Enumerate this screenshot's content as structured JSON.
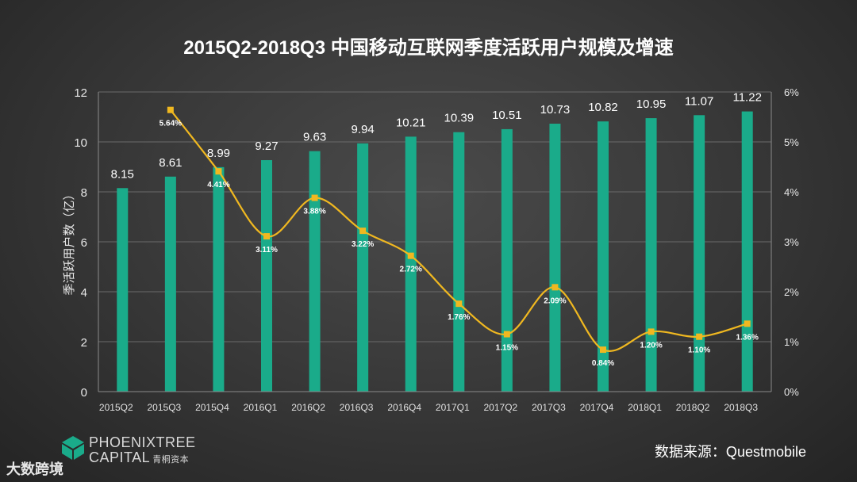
{
  "chart_data": {
    "type": "bar",
    "title": "2015Q2-2018Q3  中国移动互联网季度活跃用户规模及增速",
    "ylabel": "季活跃用户数（亿）",
    "ylim": [
      0,
      12
    ],
    "y2lim": [
      0,
      6
    ],
    "yticks": [
      "0",
      "2",
      "4",
      "6",
      "8",
      "10",
      "12"
    ],
    "y2ticks": [
      "0%",
      "1%",
      "2%",
      "3%",
      "4%",
      "5%",
      "6%"
    ],
    "categories": [
      "2015Q2",
      "2015Q3",
      "2015Q4",
      "2016Q1",
      "2016Q2",
      "2016Q3",
      "2016Q4",
      "2017Q1",
      "2017Q2",
      "2017Q3",
      "2017Q4",
      "2018Q1",
      "2018Q2",
      "2018Q3"
    ],
    "bar_values": [
      8.15,
      8.61,
      8.99,
      9.27,
      9.63,
      9.94,
      10.21,
      10.39,
      10.51,
      10.73,
      10.82,
      10.95,
      11.07,
      11.22
    ],
    "bar_labels": [
      "8.15",
      "8.61",
      "8.99",
      "9.27",
      "9.63",
      "9.94",
      "10.21",
      "10.39",
      "10.51",
      "10.73",
      "10.82",
      "10.95",
      "11.07",
      "11.22"
    ],
    "line_values": [
      null,
      5.64,
      4.41,
      3.11,
      3.88,
      3.22,
      2.72,
      1.76,
      1.15,
      2.09,
      0.84,
      1.2,
      1.1,
      1.36
    ],
    "line_labels": [
      "",
      "5.64%",
      "4.41%",
      "3.11%",
      "3.88%",
      "3.22%",
      "2.72%",
      "1.76%",
      "1.15%",
      "2.09%",
      "0.84%",
      "1.20%",
      "1.10%",
      "1.36%"
    ],
    "bar_color": "#1aab8a",
    "line_color": "#f0b820",
    "grid": true
  },
  "footer": {
    "source": "数据来源：Questmobile",
    "logo_line1": "PHOENIXTREE",
    "logo_line2": "CAPITAL",
    "logo_cn": "青桐资本",
    "watermark": "大数跨境"
  }
}
